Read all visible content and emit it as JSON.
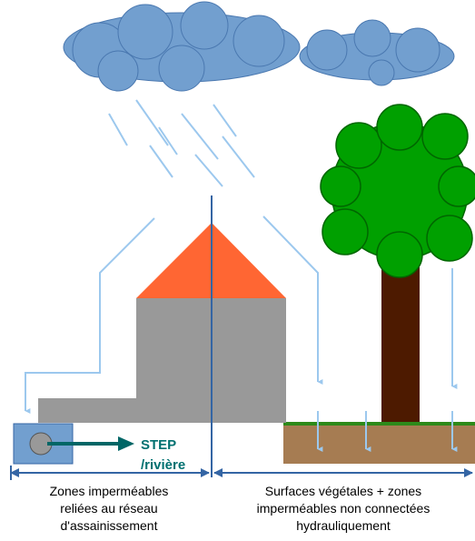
{
  "labels": {
    "outlet": [
      "STEP",
      "/rivière"
    ],
    "left_zone": [
      "Zones imperméables",
      "reliées au réseau",
      "d'assainissement"
    ],
    "right_zone": [
      "Surfaces végétales + zones",
      "imperméables non connectées",
      "hydrauliquement"
    ]
  }
}
